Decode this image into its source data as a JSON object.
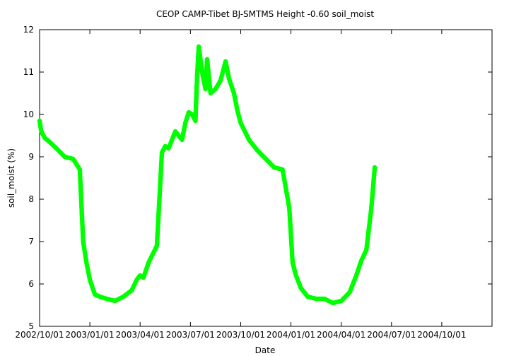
{
  "chart_data": {
    "type": "scatter",
    "title": "CEOP CAMP-Tibet BJ-SMTMS Height -0.60 soil_moist",
    "xlabel": "Date",
    "ylabel": "soil_moist (%)",
    "ylim": [
      5,
      12
    ],
    "yticks": [
      5,
      6,
      7,
      8,
      9,
      10,
      11,
      12
    ],
    "xlim": [
      "2002/10/01",
      "2005/01/01"
    ],
    "xtick_labels": [
      "2002/10/01",
      "2003/01/01",
      "2003/04/01",
      "2003/07/01",
      "2003/10/01",
      "2004/01/01",
      "2004/04/01",
      "2004/07/01",
      "2004/10/01"
    ],
    "grid": false,
    "marker_color": "#00ff00",
    "series": [
      {
        "name": "soil_moist",
        "x_months": [
          0.0,
          0.1,
          0.3,
          0.6,
          1.0,
          1.5,
          2.0,
          2.4,
          2.6,
          2.8,
          3.0,
          3.3,
          3.6,
          4.0,
          4.5,
          5.0,
          5.5,
          5.8,
          6.0,
          6.2,
          6.5,
          7.0,
          7.3,
          7.5,
          7.7,
          7.9,
          8.1,
          8.3,
          8.5,
          8.7,
          8.9,
          9.1,
          9.3,
          9.4,
          9.5,
          9.7,
          9.9,
          10.0,
          10.2,
          10.5,
          10.8,
          11.1,
          11.3,
          11.6,
          11.8,
          12.0,
          12.5,
          13.0,
          13.5,
          14.0,
          14.5,
          14.9,
          15.1,
          15.3,
          15.6,
          16.0,
          16.5,
          17.0,
          17.5,
          18.0,
          18.5,
          18.9,
          19.2,
          19.5,
          19.8,
          20.0
        ],
        "values": [
          9.85,
          9.6,
          9.45,
          9.35,
          9.2,
          9.0,
          8.95,
          8.7,
          7.0,
          6.5,
          6.1,
          5.75,
          5.7,
          5.65,
          5.6,
          5.7,
          5.85,
          6.1,
          6.2,
          6.15,
          6.5,
          6.9,
          9.1,
          9.25,
          9.2,
          9.4,
          9.6,
          9.5,
          9.4,
          9.8,
          10.05,
          10.0,
          9.85,
          10.9,
          11.6,
          11.0,
          10.6,
          11.3,
          10.5,
          10.6,
          10.8,
          11.25,
          10.85,
          10.5,
          10.1,
          9.8,
          9.4,
          9.15,
          8.95,
          8.75,
          8.7,
          7.8,
          6.5,
          6.2,
          5.9,
          5.7,
          5.65,
          5.65,
          5.55,
          5.6,
          5.8,
          6.2,
          6.55,
          6.8,
          7.8,
          8.75
        ]
      }
    ]
  }
}
